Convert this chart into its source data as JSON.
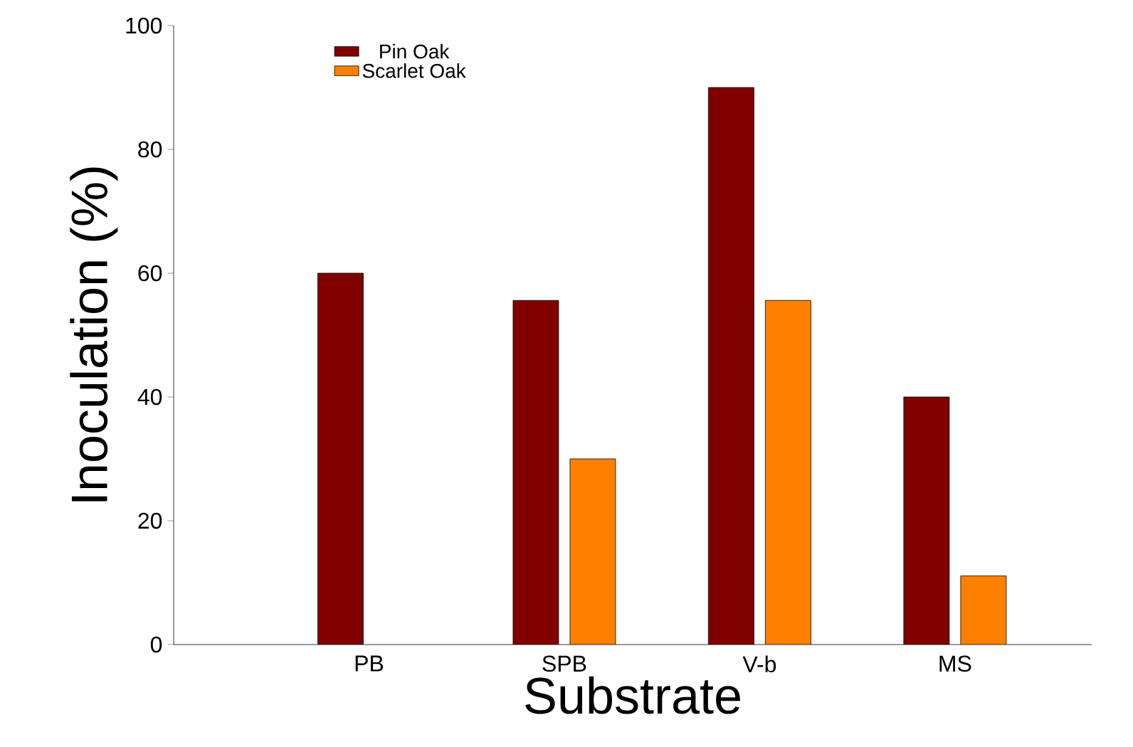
{
  "chart_data": {
    "type": "bar",
    "xlabel": "Substrate",
    "ylabel": "Inoculation (%)",
    "categories": [
      "PB",
      "SPB",
      "V-b",
      "MS"
    ],
    "series": [
      {
        "name": "Pin Oak",
        "color": "#800000",
        "values": [
          60,
          55.6,
          90,
          40
        ]
      },
      {
        "name": "Scarlet Oak",
        "color": "#ff8000",
        "values": [
          null,
          30,
          55.6,
          11.1
        ]
      }
    ],
    "ylim": [
      0,
      100
    ],
    "yticks": [
      0,
      20,
      40,
      60,
      80,
      100
    ],
    "legend": "top left"
  }
}
